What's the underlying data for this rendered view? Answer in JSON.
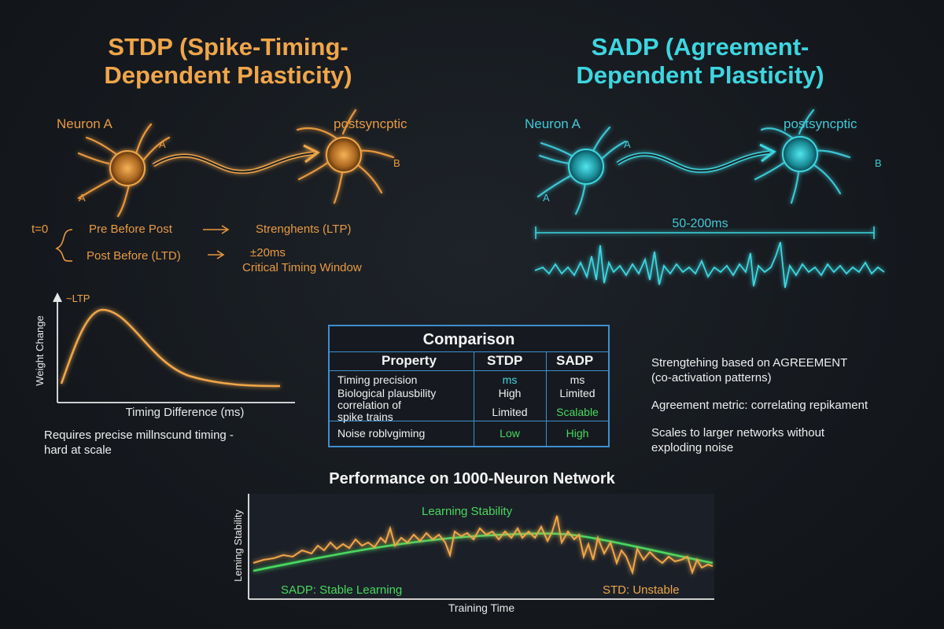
{
  "stdp": {
    "title_line1": "STDP (Spike-Timing-",
    "title_line2": "Dependent Plasticity)",
    "neuron_a": "Neuron A",
    "postsynaptic": "postsyncptic",
    "label_a_top": "A",
    "label_a_bottom": "A",
    "label_b": "B",
    "timing": {
      "t0": "t=0",
      "pre_before_post": "Pre Before Post",
      "strengthens": "Strenghents (LTP)",
      "post_before": "Post Before (LTD)",
      "window_value": "±20ms",
      "window_label": "Critical Timing Window"
    },
    "curve": {
      "ltp_label": "~LTP",
      "ylabel": "Weight Change",
      "xlabel": "Timing Difference (ms)"
    },
    "note_line1": "Requires precise millnscund timing -",
    "note_line2": "hard at scale",
    "colors": {
      "accent": "#f0a64a"
    }
  },
  "sadp": {
    "title_line1": "SADP (Agreement-",
    "title_line2": "Dependent Plasticity)",
    "neuron_a": "Neuron A",
    "postsynaptic": "postsyncptic",
    "label_a_top": "A",
    "label_a_bottom": "A",
    "label_b": "B",
    "window": "50-200ms",
    "notes": [
      "Strengtehing based on AGREEMENT",
      "(co-activation patterns)",
      "Agreement metric: correlating repikament",
      "Scales to larger networks without",
      "exploding noise"
    ],
    "colors": {
      "accent": "#3ed6e0"
    }
  },
  "comparison": {
    "title": "Comparison",
    "columns": [
      "Property",
      "STDP",
      "SADP"
    ],
    "rows": [
      {
        "property": "Timing precision",
        "stdp": "ms",
        "sadp": "ms"
      },
      {
        "property": "Biological plausbility",
        "stdp": "High",
        "sadp": "Limited"
      },
      {
        "property_line1": "correlation of",
        "property_line2": "spike trains",
        "stdp": "Limited",
        "sadp": "Scalable"
      },
      {
        "property": "Noise roblvgiming",
        "stdp": "Low",
        "sadp": "High"
      }
    ]
  },
  "performance": {
    "title": "Performance on 1000-Neuron Network",
    "ylabel": "Leming Stability",
    "xlabel": "Training Time",
    "stability_label": "Learning Stability",
    "sadp_label": "SADP: Stable Learning",
    "stdp_label": "STD: Unstable"
  }
}
